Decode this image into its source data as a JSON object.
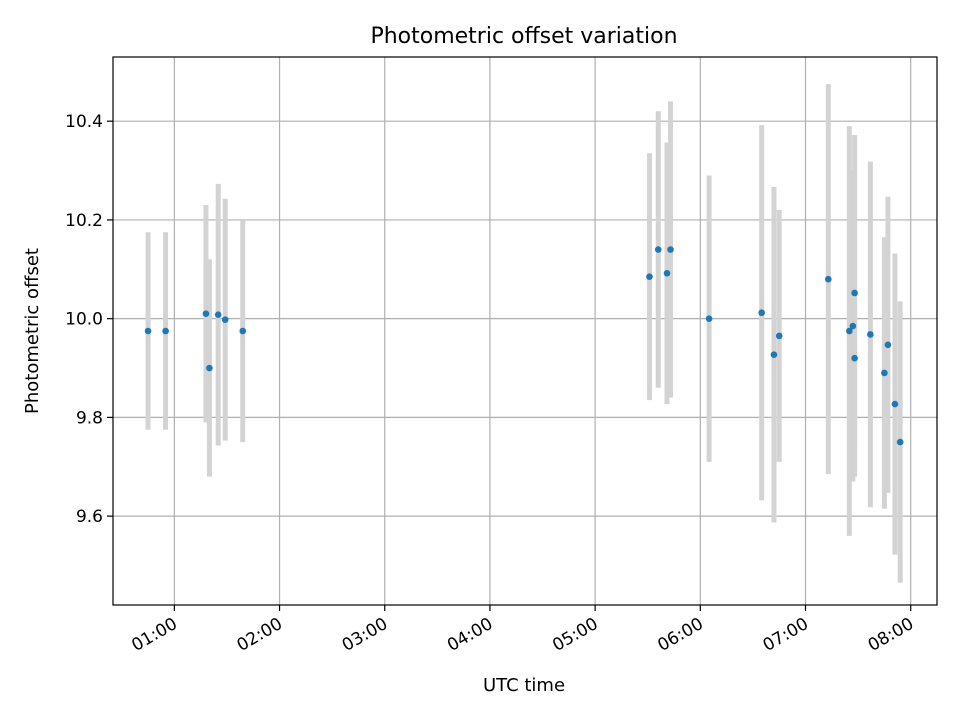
{
  "chart_data": {
    "type": "scatter",
    "title": "Photometric offset variation",
    "xlabel": "UTC time",
    "ylabel": "Photometric offset",
    "x_ticks": [
      "01:00",
      "02:00",
      "03:00",
      "04:00",
      "05:00",
      "06:00",
      "07:00",
      "08:00"
    ],
    "y_ticks": [
      "9.6",
      "9.8",
      "10.0",
      "10.2",
      "10.4"
    ],
    "xlim": [
      "00:25",
      "08:15"
    ],
    "ylim": [
      9.42,
      10.53
    ],
    "grid": true,
    "colors": {
      "point": "#1f77b4",
      "errorbar": "#d3d3d3"
    },
    "points": [
      {
        "t": "00:45",
        "y": 9.975,
        "err": 0.2
      },
      {
        "t": "00:55",
        "y": 9.975,
        "err": 0.2
      },
      {
        "t": "01:18",
        "y": 10.01,
        "err": 0.22
      },
      {
        "t": "01:20",
        "y": 9.9,
        "err": 0.22
      },
      {
        "t": "01:25",
        "y": 10.008,
        "err": 0.265
      },
      {
        "t": "01:29",
        "y": 9.998,
        "err": 0.245
      },
      {
        "t": "01:39",
        "y": 9.975,
        "err": 0.225
      },
      {
        "t": "05:31",
        "y": 10.085,
        "err": 0.25
      },
      {
        "t": "05:36",
        "y": 10.14,
        "err": 0.28
      },
      {
        "t": "05:41",
        "y": 10.092,
        "err": 0.265
      },
      {
        "t": "05:43",
        "y": 10.14,
        "err": 0.3
      },
      {
        "t": "06:05",
        "y": 10.0,
        "err": 0.29
      },
      {
        "t": "06:35",
        "y": 10.012,
        "err": 0.38
      },
      {
        "t": "06:42",
        "y": 9.927,
        "err": 0.34
      },
      {
        "t": "06:45",
        "y": 9.965,
        "err": 0.255
      },
      {
        "t": "07:13",
        "y": 10.08,
        "err": 0.395
      },
      {
        "t": "07:25",
        "y": 9.975,
        "err": 0.415
      },
      {
        "t": "07:27",
        "y": 9.985,
        "err": 0.315
      },
      {
        "t": "07:28",
        "y": 9.92,
        "err": 0.24
      },
      {
        "t": "07:28",
        "y": 10.052,
        "err": 0.32
      },
      {
        "t": "07:37",
        "y": 9.968,
        "err": 0.35
      },
      {
        "t": "07:45",
        "y": 9.89,
        "err": 0.275
      },
      {
        "t": "07:47",
        "y": 9.947,
        "err": 0.3
      },
      {
        "t": "07:51",
        "y": 9.827,
        "err": 0.305
      },
      {
        "t": "07:54",
        "y": 9.75,
        "err": 0.285
      }
    ]
  }
}
